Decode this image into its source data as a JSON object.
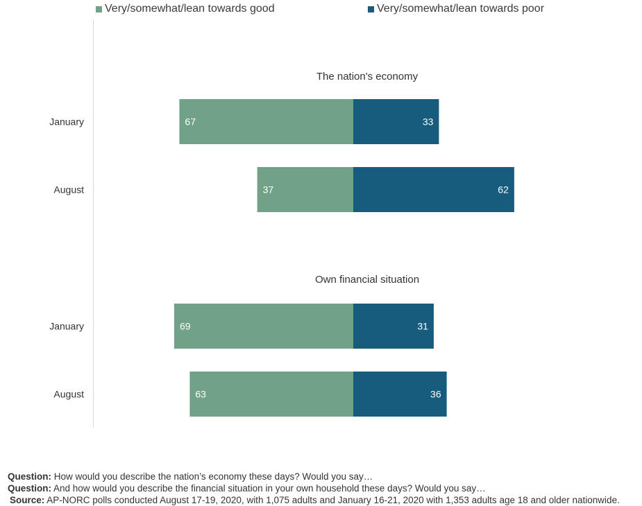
{
  "chart_data": {
    "type": "bar",
    "orientation": "horizontal-diverging",
    "series": [
      {
        "name": "Very/somewhat/lean towards good",
        "color": "#71a287"
      },
      {
        "name": "Very/somewhat/lean towards poor",
        "color": "#175c7c"
      }
    ],
    "groups": [
      {
        "title": "The nation's economy",
        "rows": [
          {
            "label": "January",
            "good": 67,
            "poor": 33
          },
          {
            "label": "August",
            "good": 37,
            "poor": 62
          }
        ]
      },
      {
        "title": "Own financial situation",
        "rows": [
          {
            "label": "January",
            "good": 69,
            "poor": 31
          },
          {
            "label": "August",
            "good": 63,
            "poor": 36
          }
        ]
      }
    ],
    "grid": false,
    "legend_position": "top"
  },
  "notes": [
    {
      "label": "Question:",
      "text": " How would you describe the nation’s economy these days? Would you say…"
    },
    {
      "label": "Question:",
      "text": " And how would you describe the financial situation in your own household these days? Would you say…"
    },
    {
      "label": "Source:",
      "text": " AP-NORC polls conducted August 17-19, 2020, with 1,075 adults and January 16-21, 2020 with 1,353 adults age 18 and older nationwide."
    }
  ]
}
